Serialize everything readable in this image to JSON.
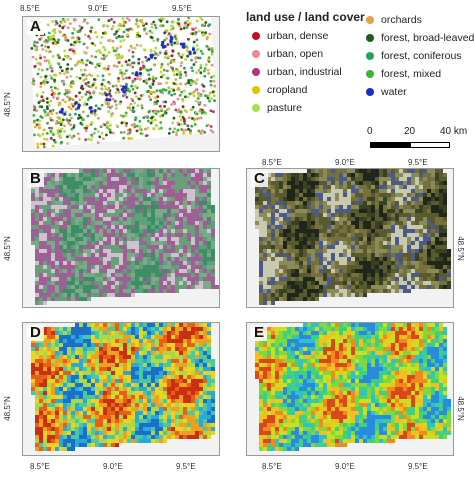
{
  "legend": {
    "title": "land use / land cover",
    "items": [
      {
        "label": "urban, dense",
        "color": "#c0102a"
      },
      {
        "label": "urban, open",
        "color": "#f08a8a"
      },
      {
        "label": "urban, industrial",
        "color": "#b2367a"
      },
      {
        "label": "cropland",
        "color": "#e0c400"
      },
      {
        "label": "pasture",
        "color": "#a6e04a"
      },
      {
        "label": "orchards",
        "color": "#e3a24a"
      },
      {
        "label": "forest, broad-leaved",
        "color": "#1f5e1f"
      },
      {
        "label": "forest, coniferous",
        "color": "#2aa05a"
      },
      {
        "label": "forest, mixed",
        "color": "#3bb33b"
      },
      {
        "label": "water",
        "color": "#1a2fc8"
      }
    ]
  },
  "scale_bar": {
    "labels": [
      "0",
      "20",
      "40 km"
    ]
  },
  "panels": [
    {
      "id": "A",
      "label": "A",
      "style": "points"
    },
    {
      "id": "B",
      "label": "B",
      "style": "false-color"
    },
    {
      "id": "C",
      "label": "C",
      "style": "true-color"
    },
    {
      "id": "D",
      "label": "D",
      "style": "heat"
    },
    {
      "id": "E",
      "label": "E",
      "style": "heat-cool"
    }
  ],
  "ticks": {
    "lon": [
      "8.5°E",
      "9.0°E",
      "9.5°E"
    ],
    "lat": "48.5°N"
  }
}
